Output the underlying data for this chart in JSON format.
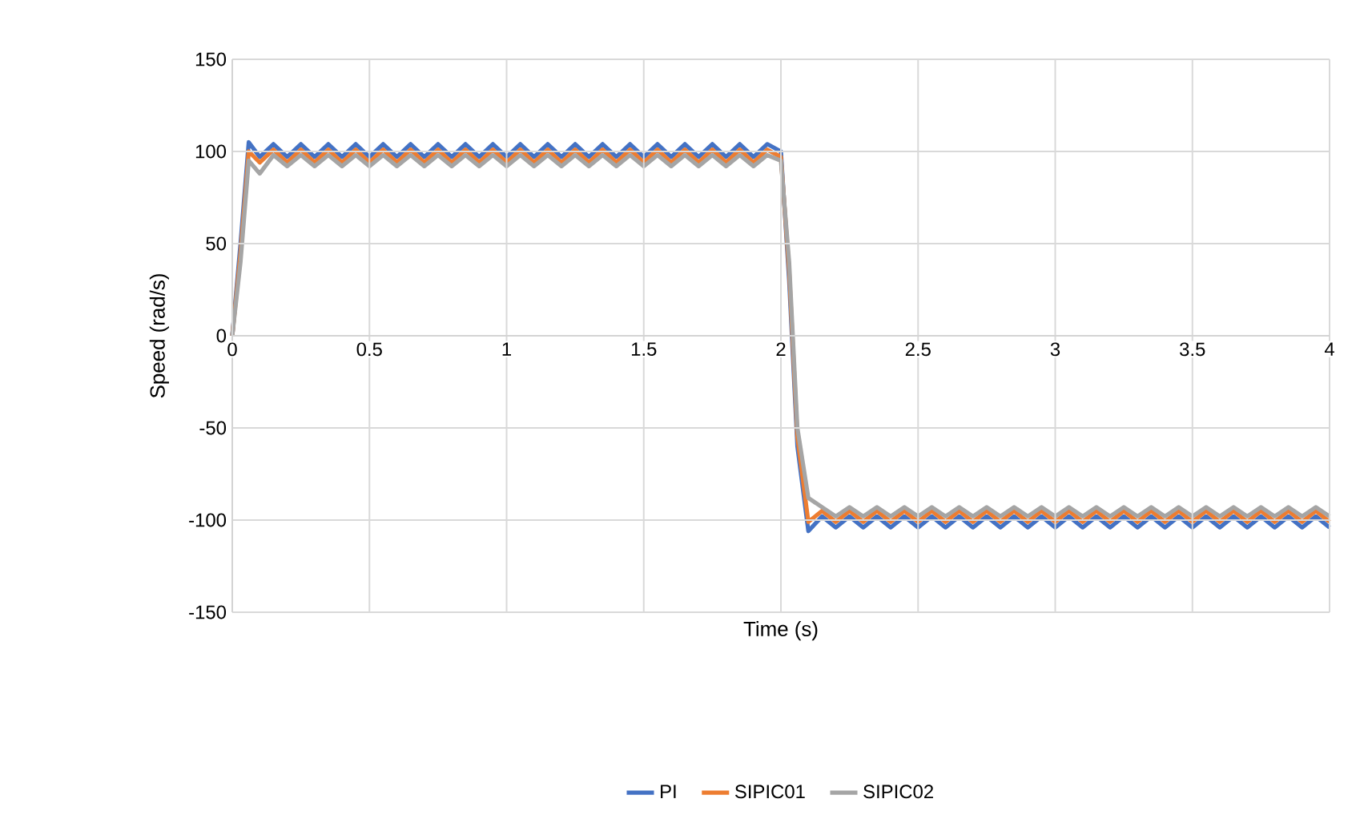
{
  "chart_data": {
    "type": "line",
    "xlabel": "Time (s)",
    "ylabel": "Speed (rad/s)",
    "x": [
      0,
      0.03,
      0.06,
      0.1,
      0.15,
      0.2,
      0.25,
      0.3,
      0.35,
      0.4,
      0.45,
      0.5,
      0.55,
      0.6,
      0.65,
      0.7,
      0.75,
      0.8,
      0.85,
      0.9,
      0.95,
      1,
      1.05,
      1.1,
      1.15,
      1.2,
      1.25,
      1.3,
      1.35,
      1.4,
      1.45,
      1.5,
      1.55,
      1.6,
      1.65,
      1.7,
      1.75,
      1.8,
      1.85,
      1.9,
      1.95,
      2,
      2.03,
      2.06,
      2.1,
      2.15,
      2.2,
      2.25,
      2.3,
      2.35,
      2.4,
      2.45,
      2.5,
      2.55,
      2.6,
      2.65,
      2.7,
      2.75,
      2.8,
      2.85,
      2.9,
      2.95,
      3,
      3.05,
      3.1,
      3.15,
      3.2,
      3.25,
      3.3,
      3.35,
      3.4,
      3.45,
      3.5,
      3.55,
      3.6,
      3.65,
      3.7,
      3.75,
      3.8,
      3.85,
      3.9,
      3.95,
      4
    ],
    "series": [
      {
        "name": "PI",
        "color": "#4472c4",
        "values": [
          0,
          50,
          105,
          97,
          104,
          97,
          104,
          97,
          104,
          97,
          104,
          97,
          104,
          97,
          104,
          97,
          104,
          97,
          104,
          97,
          104,
          97,
          104,
          97,
          104,
          97,
          104,
          97,
          104,
          97,
          104,
          97,
          104,
          97,
          104,
          97,
          104,
          97,
          104,
          97,
          104,
          100,
          30,
          -60,
          -106,
          -98,
          -104,
          -98,
          -104,
          -98,
          -104,
          -98,
          -104,
          -98,
          -104,
          -98,
          -104,
          -98,
          -104,
          -98,
          -104,
          -98,
          -104,
          -98,
          -104,
          -98,
          -104,
          -98,
          -104,
          -98,
          -104,
          -98,
          -104,
          -98,
          -104,
          -98,
          -104,
          -98,
          -104,
          -98,
          -104,
          -98,
          -104
        ]
      },
      {
        "name": "SIPIC01",
        "color": "#ed7d31",
        "values": [
          0,
          45,
          100,
          94,
          101,
          94,
          101,
          94,
          101,
          94,
          101,
          94,
          101,
          94,
          101,
          94,
          101,
          94,
          101,
          94,
          101,
          94,
          101,
          94,
          101,
          94,
          101,
          94,
          101,
          94,
          101,
          94,
          101,
          94,
          101,
          94,
          101,
          94,
          101,
          94,
          101,
          97,
          35,
          -55,
          -101,
          -95,
          -101,
          -95,
          -101,
          -95,
          -101,
          -95,
          -101,
          -95,
          -101,
          -95,
          -101,
          -95,
          -101,
          -95,
          -101,
          -95,
          -101,
          -95,
          -101,
          -95,
          -101,
          -95,
          -101,
          -95,
          -101,
          -95,
          -101,
          -95,
          -101,
          -95,
          -101,
          -95,
          -101,
          -95,
          -101,
          -95,
          -101
        ]
      },
      {
        "name": "SIPIC02",
        "color": "#a5a5a5",
        "values": [
          0,
          40,
          95,
          88,
          98,
          92,
          98,
          92,
          98,
          92,
          98,
          92,
          98,
          92,
          98,
          92,
          98,
          92,
          98,
          92,
          98,
          92,
          98,
          92,
          98,
          92,
          98,
          92,
          98,
          92,
          98,
          92,
          98,
          92,
          98,
          92,
          98,
          92,
          98,
          92,
          98,
          95,
          40,
          -50,
          -88,
          -93,
          -98,
          -93,
          -98,
          -93,
          -98,
          -93,
          -98,
          -93,
          -98,
          -93,
          -98,
          -93,
          -98,
          -93,
          -98,
          -93,
          -98,
          -93,
          -98,
          -93,
          -98,
          -93,
          -98,
          -93,
          -98,
          -93,
          -98,
          -93,
          -98,
          -93,
          -98,
          -93,
          -98,
          -93,
          -98,
          -93,
          -98
        ]
      }
    ],
    "xlim": [
      0,
      4
    ],
    "ylim": [
      -150,
      150
    ],
    "xticks": [
      0,
      0.5,
      1,
      1.5,
      2,
      2.5,
      3,
      3.5,
      4
    ],
    "yticks": [
      -150,
      -100,
      -50,
      0,
      50,
      100,
      150
    ],
    "grid": true,
    "legend": "bottom"
  }
}
